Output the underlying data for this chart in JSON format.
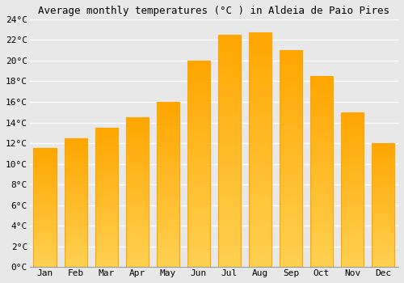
{
  "title": "Average monthly temperatures (°C ) in Aldeia de Paio Pires",
  "months": [
    "Jan",
    "Feb",
    "Mar",
    "Apr",
    "May",
    "Jun",
    "Jul",
    "Aug",
    "Sep",
    "Oct",
    "Nov",
    "Dec"
  ],
  "values": [
    11.5,
    12.5,
    13.5,
    14.5,
    16.0,
    20.0,
    22.5,
    22.7,
    21.0,
    18.5,
    15.0,
    12.0
  ],
  "bar_color_light": "#FFD050",
  "bar_color_dark": "#FFA500",
  "ylim": [
    0,
    24
  ],
  "yticks": [
    0,
    2,
    4,
    6,
    8,
    10,
    12,
    14,
    16,
    18,
    20,
    22,
    24
  ],
  "ytick_labels": [
    "0°C",
    "2°C",
    "4°C",
    "6°C",
    "8°C",
    "10°C",
    "12°C",
    "14°C",
    "16°C",
    "18°C",
    "20°C",
    "22°C",
    "24°C"
  ],
  "background_color": "#e8e8e8",
  "plot_bg_color": "#e8e8e8",
  "grid_color": "#ffffff",
  "title_fontsize": 9,
  "tick_fontsize": 8,
  "bar_edge_color": "#FFA500",
  "bar_width": 0.75
}
